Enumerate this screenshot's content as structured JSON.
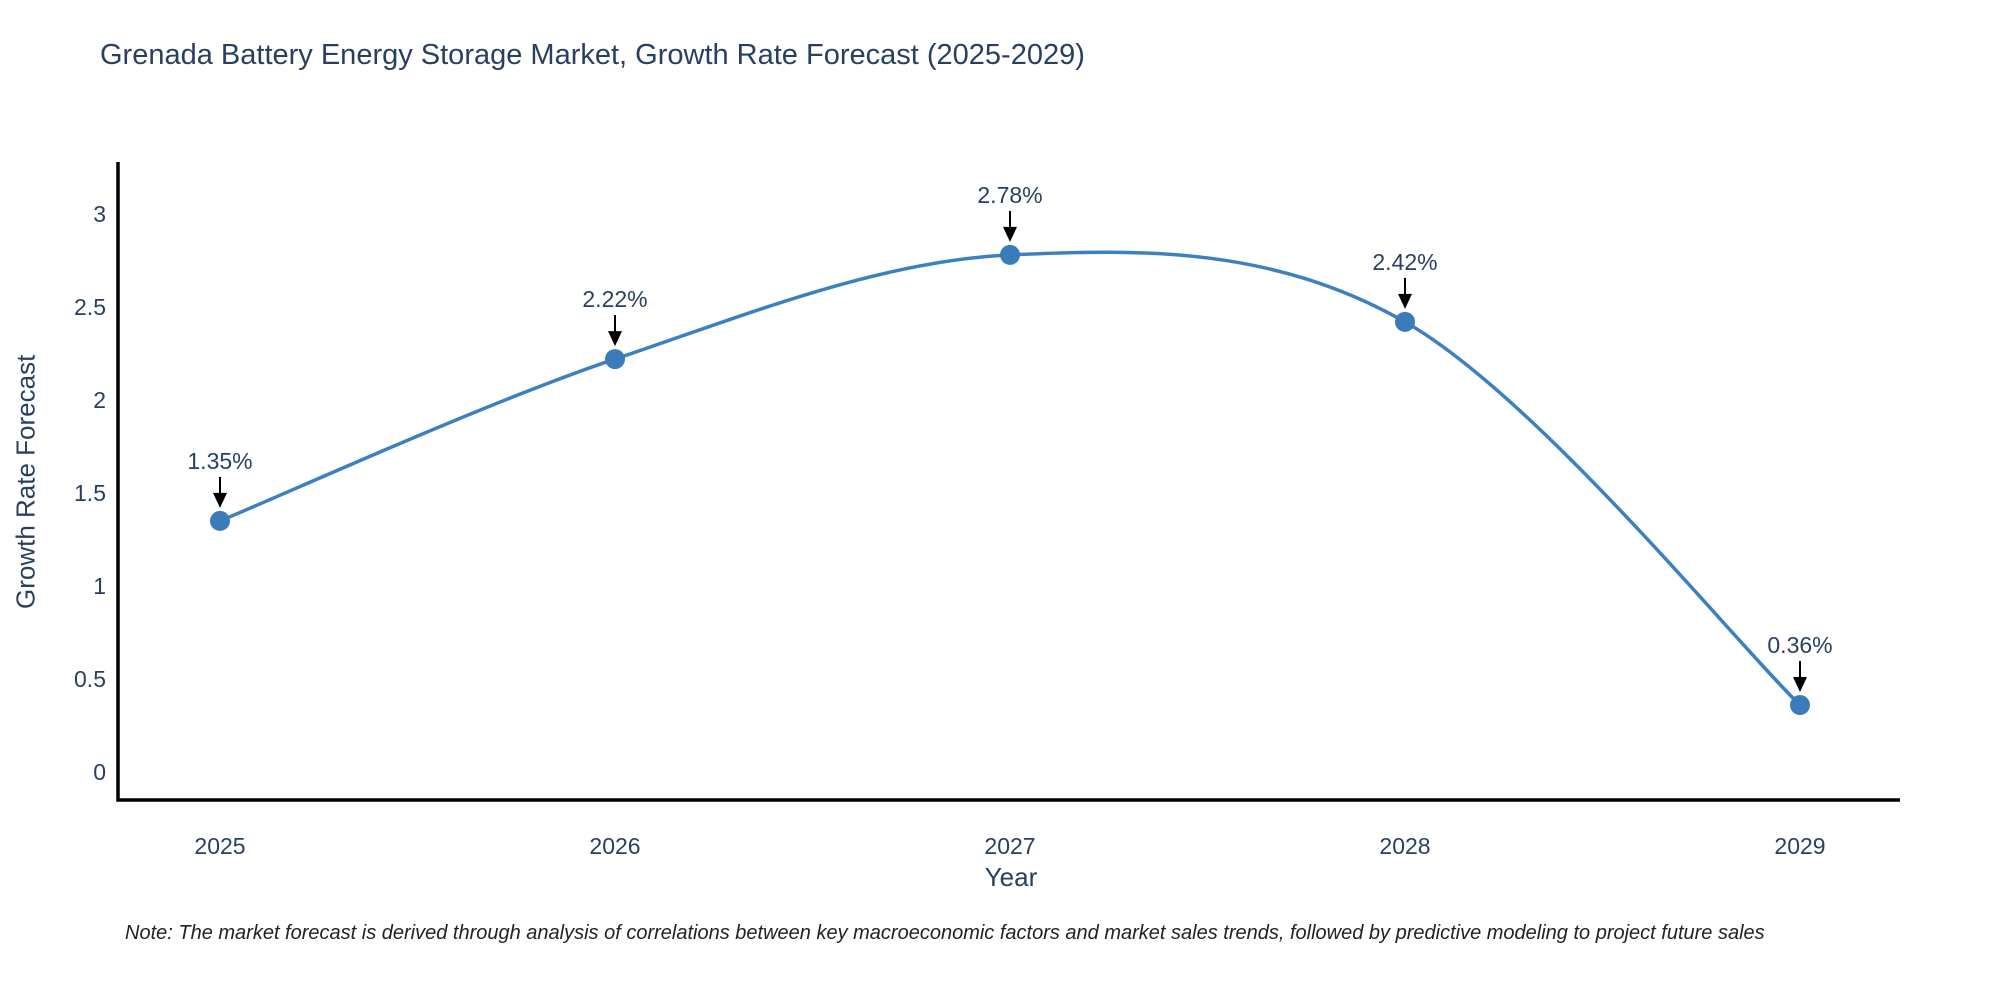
{
  "title": {
    "text": "Grenada Battery Energy Storage Market, Growth Rate Forecast (2025-2029)"
  },
  "note": {
    "text": "Note: The market forecast is derived through analysis of correlations between key macroeconomic factors and market sales trends, followed by predictive modeling to project future sales"
  },
  "chart_data": {
    "type": "line",
    "line_shape": "spline",
    "title": "Grenada Battery Energy Storage Market, Growth Rate Forecast (2025-2029)",
    "xlabel": "Year",
    "ylabel": "Growth Rate Forecast",
    "x": [
      2025,
      2026,
      2027,
      2028,
      2029
    ],
    "values": [
      1.35,
      2.22,
      2.78,
      2.42,
      0.36
    ],
    "point_labels": [
      "1.35%",
      "2.22%",
      "2.78%",
      "2.42%",
      "0.36%"
    ],
    "xticks": [
      "2025",
      "2026",
      "2027",
      "2028",
      "2029"
    ],
    "yticks": [
      0,
      0.5,
      1,
      1.5,
      2,
      2.5,
      3
    ],
    "ylim": [
      -0.15,
      3.3
    ],
    "grid": false,
    "legend": "none",
    "colors": {
      "line": "#3d80c0",
      "marker": "#3a7cba",
      "axis": "#000000",
      "tick_text": "#2a3f5f",
      "annotation_text": "#2a3f5f",
      "annotation_arrow": "#000000"
    }
  }
}
